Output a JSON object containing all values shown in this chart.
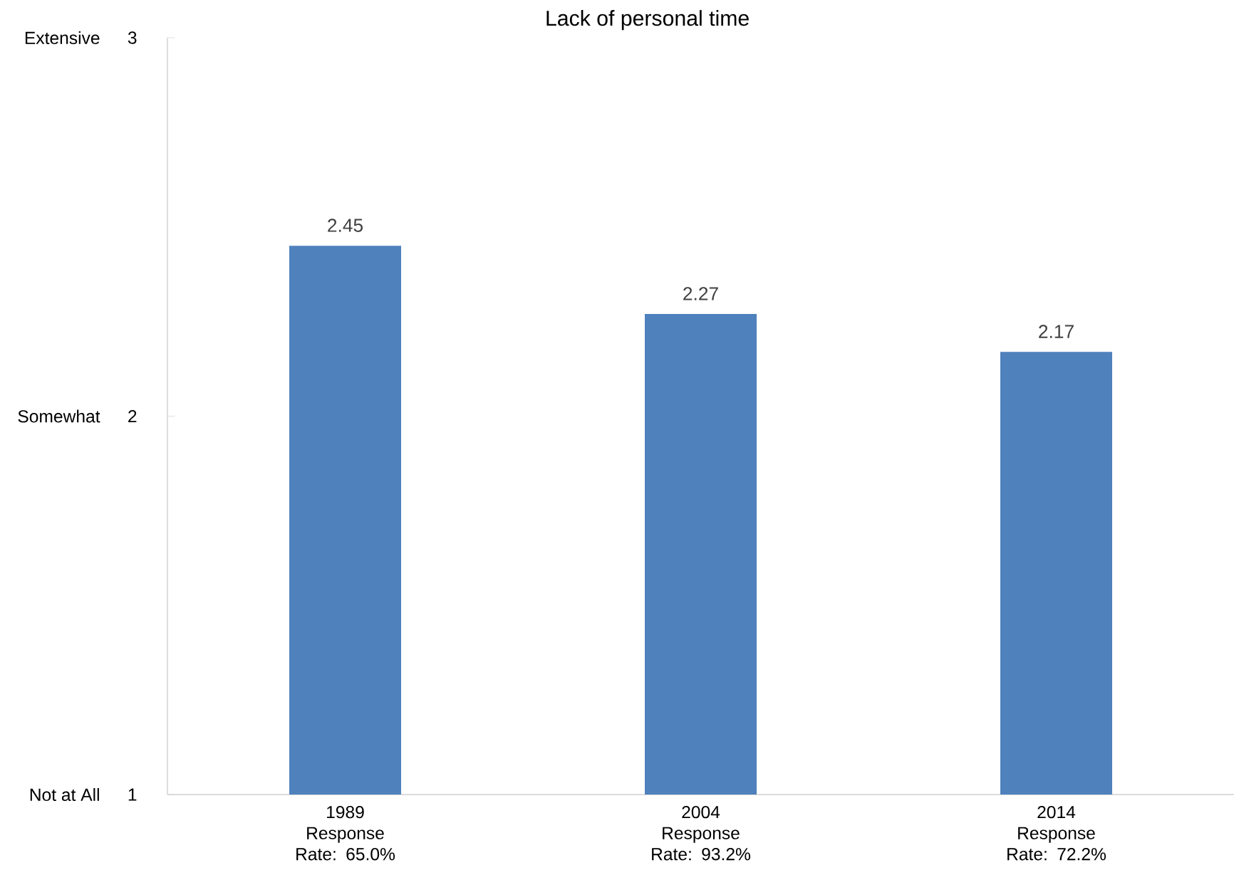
{
  "chart_data": {
    "type": "bar",
    "title": "Lack of personal time",
    "categories": [
      "1989 Response Rate: 65.0%",
      "2004 Response Rate: 93.2%",
      "2014 Response Rate: 72.2%"
    ],
    "values": [
      2.45,
      2.27,
      2.17
    ],
    "value_labels": [
      "2.45",
      "2.27",
      "2.17"
    ],
    "color": "#4f81bd",
    "ylim": [
      1,
      3
    ],
    "yticks": [
      1,
      2,
      3
    ],
    "annotations": [
      "Extensive",
      "Somewhat",
      "Not at All"
    ]
  }
}
